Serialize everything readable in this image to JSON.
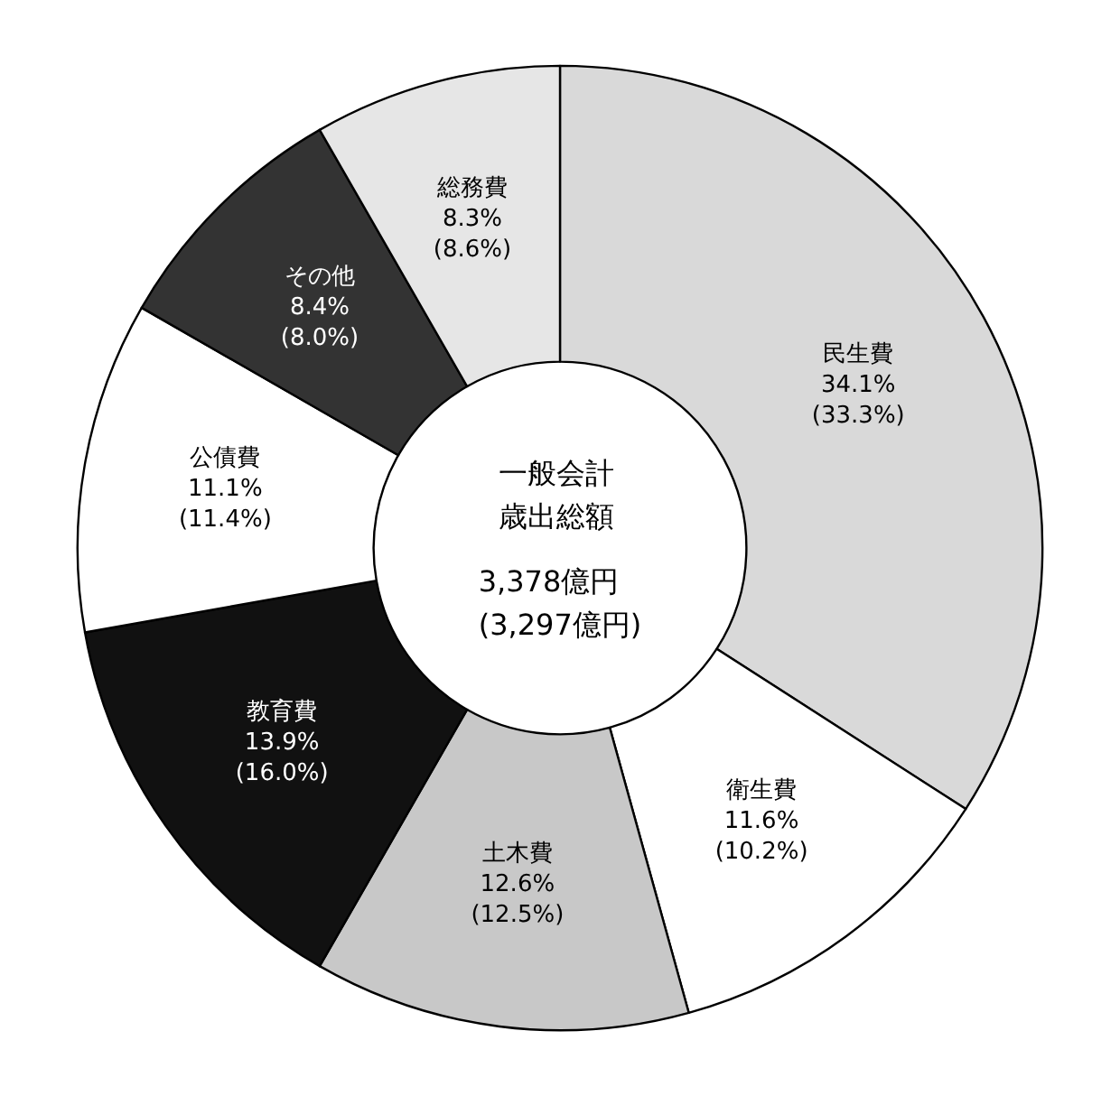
{
  "chart_data": {
    "type": "donut",
    "title": "一般会計歳出総額",
    "subtitle": "3,378億円",
    "annotations": [
      "(3,297億円)"
    ],
    "categories": [
      "民生費",
      "衛生費",
      "土木費",
      "教育費",
      "公債費",
      "その他",
      "総務費"
    ],
    "values": [
      34.1,
      11.6,
      12.6,
      13.9,
      11.1,
      8.4,
      8.3
    ],
    "value_labels": [
      "34.1%\n(33.3%)",
      "11.6%\n(10.2%)",
      "12.6%\n(12.5%)",
      "13.9%\n(16.0%)",
      "11.1%\n(11.4%)",
      "8.4%\n(8.0%)",
      "8.3%\n(8.6%)"
    ],
    "colors": [
      "#d9d9d9",
      "#ffffff",
      "#c8c8c8",
      "#111111",
      "#ffffff",
      "#333333",
      "#e6e6e6"
    ],
    "legend": false
  }
}
